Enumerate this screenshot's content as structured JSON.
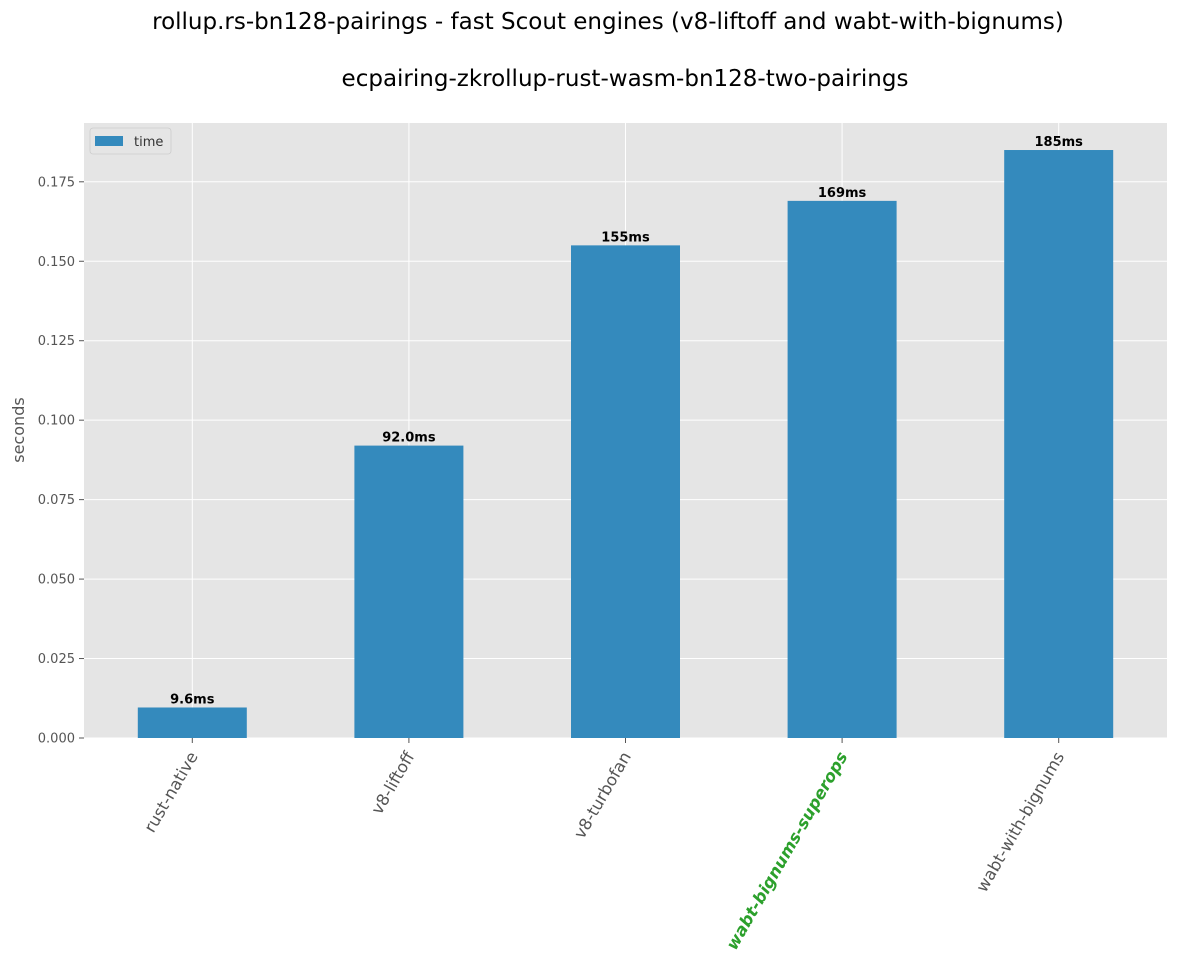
{
  "chart_data": {
    "type": "bar",
    "suptitle": "rollup.rs-bn128-pairings - fast Scout engines (v8-liftoff and wabt-with-bignums)",
    "title": "ecpairing-zkrollup-rust-wasm-bn128-two-pairings",
    "xlabel": "",
    "ylabel": "seconds",
    "categories": [
      "rust-native",
      "v8-liftoff",
      "v8-turbofan",
      "wabt-bignums-superops",
      "wabt-with-bignums"
    ],
    "highlighted_category": "wabt-bignums-superops",
    "series": [
      {
        "name": "time",
        "values": [
          0.0096,
          0.092,
          0.155,
          0.169,
          0.185
        ],
        "labels": [
          "9.6ms",
          "92.0ms",
          "155ms",
          "169ms",
          "185ms"
        ]
      }
    ],
    "ylim": [
      0,
      0.1935
    ],
    "yticks": [
      "0.000",
      "0.025",
      "0.050",
      "0.075",
      "0.100",
      "0.125",
      "0.150",
      "0.175"
    ],
    "grid": true,
    "legend_position": "top-left",
    "colors": {
      "bar": "#348abd",
      "axes_bg": "#e5e5e5",
      "grid": "#ffffff",
      "highlight_label": "#2ca02c"
    }
  }
}
